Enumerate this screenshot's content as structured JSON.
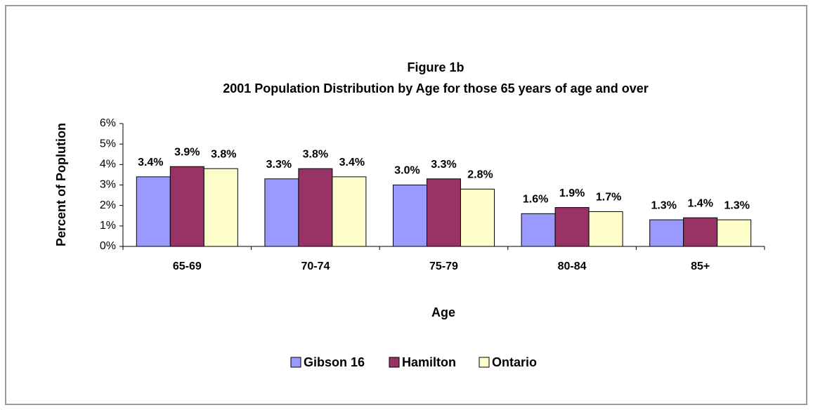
{
  "chart_data": {
    "type": "bar",
    "title": "Figure 1b",
    "subtitle": "2001 Population Distribution by Age for those 65 years of age and over",
    "x_label": "Age",
    "y_label": "Percent of Poplution",
    "categories": [
      "65-69",
      "70-74",
      "75-79",
      "80-84",
      "85+"
    ],
    "series": [
      {
        "name": "Gibson 16",
        "color": "#9999ff",
        "values": [
          3.4,
          3.3,
          3.0,
          1.6,
          1.3
        ],
        "value_labels": [
          "3.4%",
          "3.3%",
          "3.0%",
          "1.6%",
          "1.3%"
        ]
      },
      {
        "name": "Hamilton",
        "color": "#993366",
        "values": [
          3.9,
          3.8,
          3.3,
          1.9,
          1.4
        ],
        "value_labels": [
          "3.9%",
          "3.8%",
          "3.3%",
          "1.9%",
          "1.4%"
        ]
      },
      {
        "name": "Ontario",
        "color": "#ffffcc",
        "values": [
          3.8,
          3.4,
          2.8,
          1.7,
          1.3
        ],
        "value_labels": [
          "3.8%",
          "3.4%",
          "2.8%",
          "1.7%",
          "1.3%"
        ]
      }
    ],
    "ylim": [
      0,
      6
    ],
    "yticks": [
      {
        "value": 0,
        "label": "0%"
      },
      {
        "value": 1,
        "label": "1%"
      },
      {
        "value": 2,
        "label": "2%"
      },
      {
        "value": 3,
        "label": "3%"
      },
      {
        "value": 4,
        "label": "4%"
      },
      {
        "value": 5,
        "label": "5%"
      },
      {
        "value": 6,
        "label": "6%"
      }
    ],
    "grid": false,
    "legend": "bottom"
  }
}
